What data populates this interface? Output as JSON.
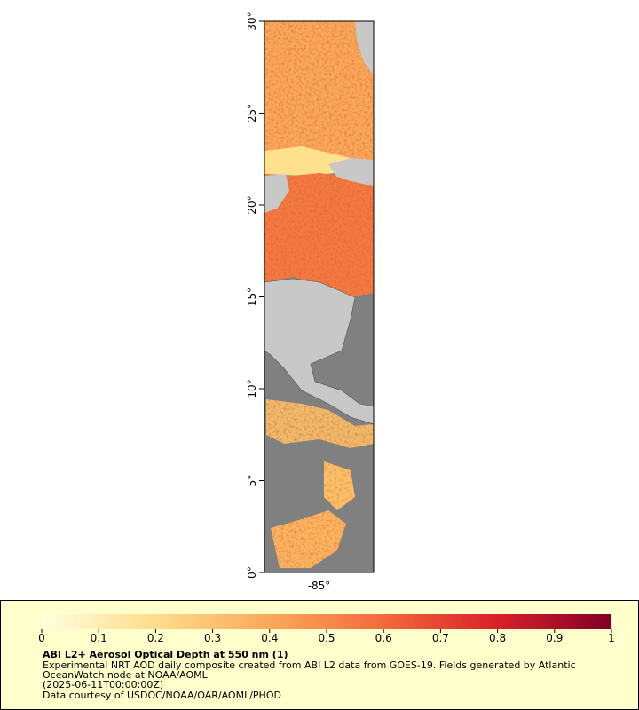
{
  "map": {
    "latitude_range": [
      0,
      30
    ],
    "longitude_range": [
      -88,
      -82
    ],
    "latitude_ticks": [
      {
        "value": 0,
        "label": "0°"
      },
      {
        "value": 5,
        "label": "5°"
      },
      {
        "value": 10,
        "label": "10°"
      },
      {
        "value": 15,
        "label": "15°"
      },
      {
        "value": 20,
        "label": "20°"
      },
      {
        "value": 25,
        "label": "25°"
      },
      {
        "value": 30,
        "label": "30°"
      }
    ],
    "longitude_ticks": [
      {
        "value": -85,
        "label": "-85°"
      }
    ]
  },
  "colorbar": {
    "range": [
      0,
      1
    ],
    "ticks": [
      0,
      0.1,
      0.2,
      0.3,
      0.4,
      0.5,
      0.6,
      0.7,
      0.8,
      0.9,
      1
    ]
  },
  "legend": {
    "title": "ABI L2+ Aerosol Optical Depth at 550 nm (1)",
    "lines": [
      "Experimental NRT AOD daily composite created from ABI L2 data from GOES-19. Fields generated by Atlantic",
      "OceanWatch node at NOAA/AOML",
      "(2025-06-11T00:00:00Z)",
      "Data courtesy of USDOC/NOAA/OAR/AOML/PHOD"
    ]
  }
}
